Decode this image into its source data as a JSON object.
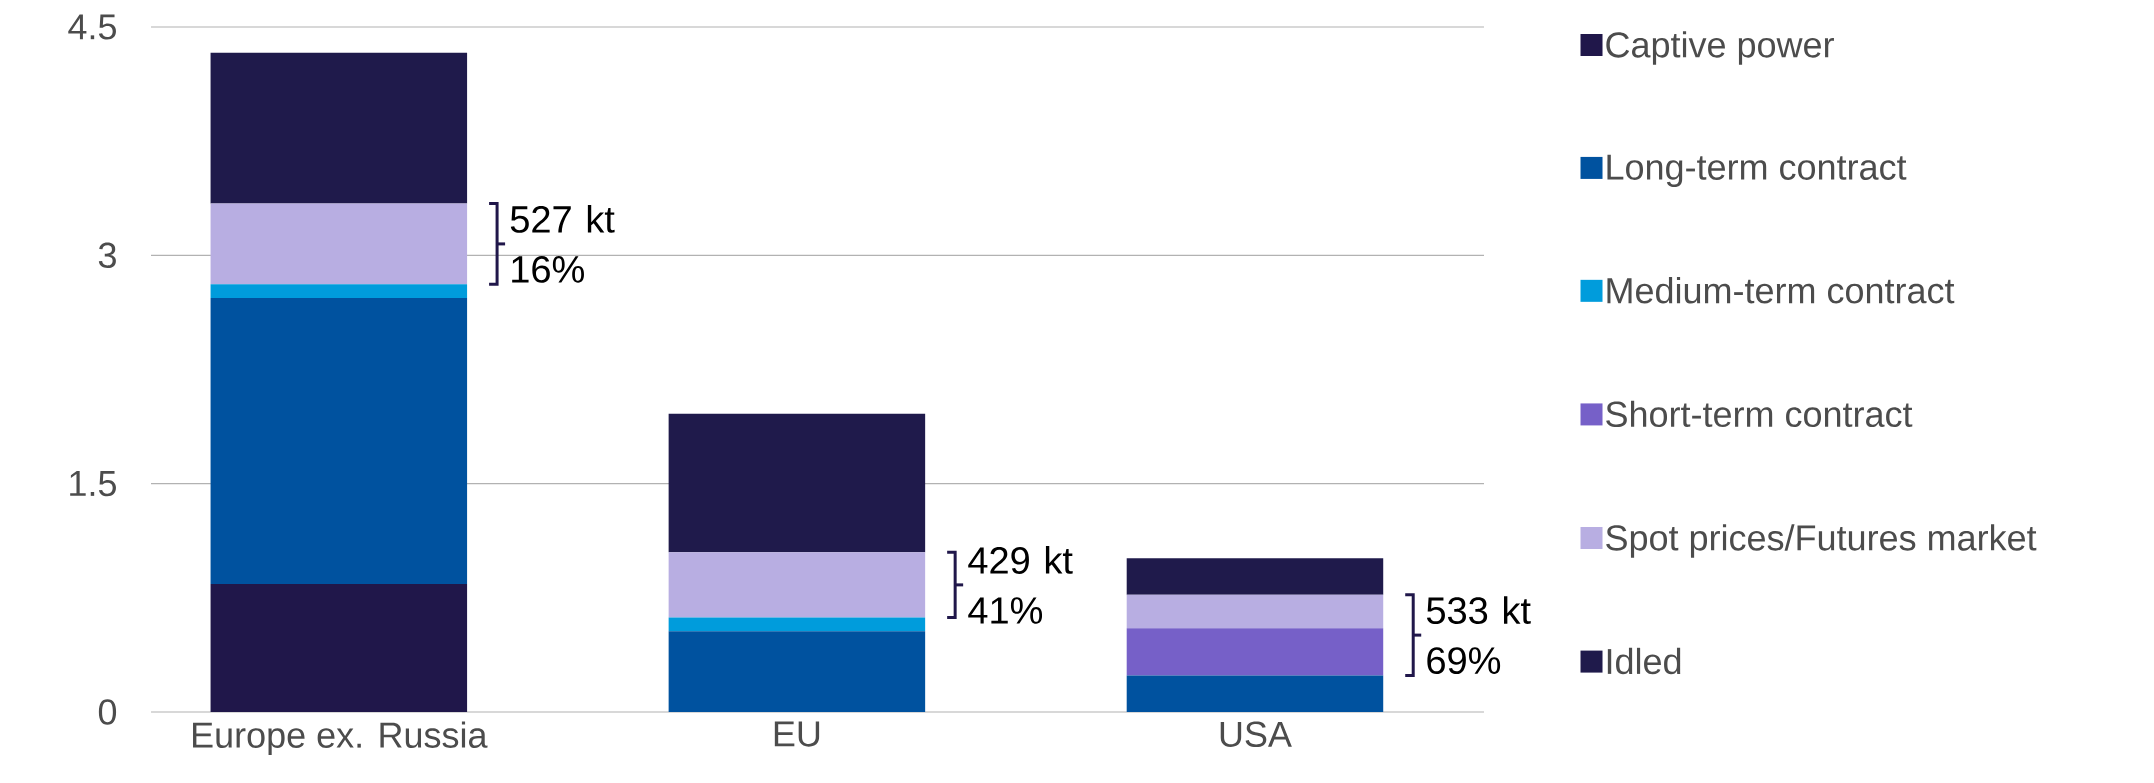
{
  "chart_data": {
    "type": "bar",
    "stacked": true,
    "categories": [
      "Europe ex. Russia",
      "EU",
      "USA"
    ],
    "series": [
      {
        "name": "Captive power",
        "color": "#20174a",
        "values": [
          0.84,
          null,
          null
        ]
      },
      {
        "name": "Long-term contract",
        "color": "#00529f",
        "values": [
          1.88,
          0.53,
          0.24
        ]
      },
      {
        "name": "Medium-term contract",
        "color": "#009cdc",
        "values": [
          0.09,
          0.09,
          null
        ]
      },
      {
        "name": "Short-term contract",
        "color": "#7660c8",
        "values": [
          null,
          null,
          0.31
        ]
      },
      {
        "name": "Spot prices/Futures market",
        "color": "#b8aee2",
        "values": [
          0.53,
          0.43,
          0.22
        ]
      },
      {
        "name": "Idled",
        "color": "#1f1a4b",
        "values": [
          0.99,
          0.91,
          0.24
        ]
      }
    ],
    "ylim": [
      0,
      4.5
    ],
    "yticks": [
      0,
      1.5,
      3,
      4.5
    ],
    "grid": "y",
    "legend": "right",
    "annotations": [
      "527 kt 16%",
      "429 kt 41%",
      "533 kt 69%"
    ]
  }
}
